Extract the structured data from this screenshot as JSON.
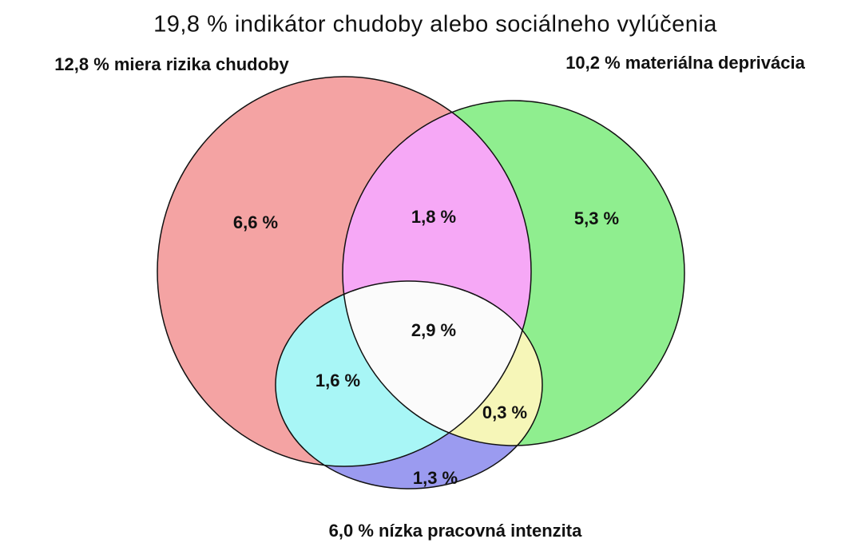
{
  "title": "19,8 %  indikátor chudoby alebo sociálneho vylúčenia",
  "sets": [
    {
      "label": "12,8 %  miera rizika chudoby"
    },
    {
      "label": "10,2 %  materiálna deprivácia"
    },
    {
      "label": "6,0 %  nízka pracovná intenzita"
    }
  ],
  "regions": [
    {
      "label": "6,6 %"
    },
    {
      "label": "1,8 %"
    },
    {
      "label": "5,3 %"
    },
    {
      "label": "2,9 %"
    },
    {
      "label": "1,6 %"
    },
    {
      "label": "0,3 %"
    },
    {
      "label": "1,3 %"
    }
  ]
}
